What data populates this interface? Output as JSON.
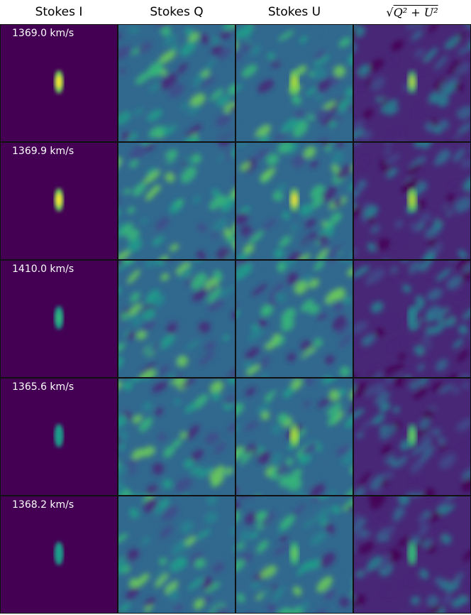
{
  "columns": [
    {
      "label": "Stokes I",
      "kind": "I"
    },
    {
      "label": "Stokes Q",
      "kind": "Q"
    },
    {
      "label": "Stokes U",
      "kind": "U"
    },
    {
      "label": "sqrt(Q^2 + U^2)",
      "kind": "P"
    }
  ],
  "rows": [
    {
      "velocity_label": "1369.0 km/s",
      "source_I": 1.0,
      "source_U": 0.9,
      "source_P": 0.8
    },
    {
      "velocity_label": "1369.9 km/s",
      "source_I": 1.0,
      "source_U": 0.95,
      "source_P": 0.85
    },
    {
      "velocity_label": "1410.0 km/s",
      "source_I": 0.45,
      "source_U": 0.0,
      "source_P": 0.1
    },
    {
      "velocity_label": "1365.6 km/s",
      "source_I": 0.35,
      "source_U": 0.9,
      "source_P": 0.65
    },
    {
      "velocity_label": "1368.2 km/s",
      "source_I": 0.3,
      "source_U": 0.6,
      "source_P": 0.5
    }
  ],
  "colormap": "viridis",
  "colors": {
    "viridis_low": "#440154",
    "viridis_mid": "#21918c",
    "viridis_high": "#fde725"
  }
}
